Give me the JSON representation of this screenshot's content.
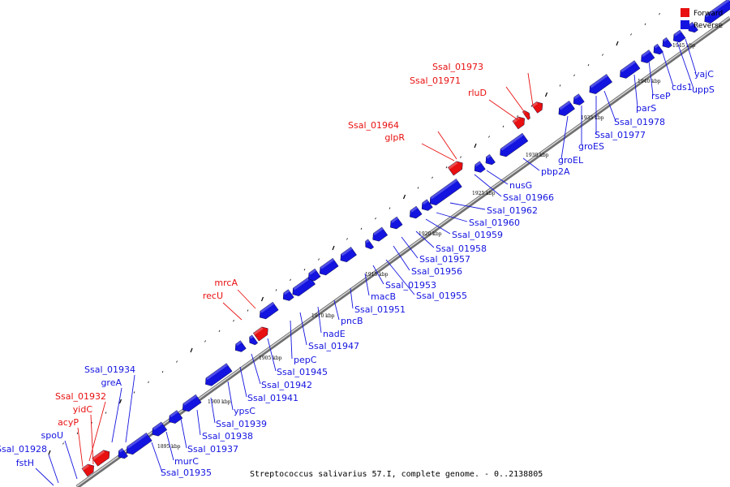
{
  "caption": "Streptococcus salivarius 57.I, complete genome. - 0..2138805",
  "colors": {
    "forward": "#e81010",
    "reverse": "#1414e0",
    "backbone": "#9a9a9a"
  },
  "legend": [
    {
      "label": "Forward",
      "color": "#e81010"
    },
    {
      "label": "Reverse",
      "color": "#1414e0"
    }
  ],
  "scale_labels": [
    "1895 kbp",
    "1900 kbp",
    "1905 kbp",
    "1910 kbp",
    "1915 kbp",
    "1920 kbp",
    "1925 kbp",
    "1930 kbp",
    "1935 kbp",
    "1940 kbp",
    "1945 kbp"
  ],
  "genes": [
    {
      "name": "Ssal_01928",
      "strand": "reverse"
    },
    {
      "name": "fstH",
      "strand": "reverse"
    },
    {
      "name": "spoU",
      "strand": "reverse"
    },
    {
      "name": "acyP",
      "strand": "forward"
    },
    {
      "name": "yidC",
      "strand": "forward"
    },
    {
      "name": "Ssal_01932",
      "strand": "forward"
    },
    {
      "name": "greA",
      "strand": "reverse"
    },
    {
      "name": "Ssal_01934",
      "strand": "reverse"
    },
    {
      "name": "Ssal_01935",
      "strand": "reverse"
    },
    {
      "name": "murC",
      "strand": "reverse"
    },
    {
      "name": "Ssal_01937",
      "strand": "reverse"
    },
    {
      "name": "Ssal_01938",
      "strand": "reverse"
    },
    {
      "name": "Ssal_01939",
      "strand": "reverse"
    },
    {
      "name": "ypsC",
      "strand": "reverse"
    },
    {
      "name": "Ssal_01941",
      "strand": "reverse"
    },
    {
      "name": "Ssal_01942",
      "strand": "reverse"
    },
    {
      "name": "Ssal_01945",
      "strand": "reverse"
    },
    {
      "name": "pepC",
      "strand": "reverse"
    },
    {
      "name": "Ssal_01947",
      "strand": "reverse"
    },
    {
      "name": "nadE",
      "strand": "reverse"
    },
    {
      "name": "pncB",
      "strand": "reverse"
    },
    {
      "name": "recU",
      "strand": "forward"
    },
    {
      "name": "mrcA",
      "strand": "forward"
    },
    {
      "name": "Ssal_01951",
      "strand": "reverse"
    },
    {
      "name": "macB",
      "strand": "reverse"
    },
    {
      "name": "Ssal_01953",
      "strand": "reverse"
    },
    {
      "name": "Ssal_01955",
      "strand": "reverse"
    },
    {
      "name": "Ssal_01956",
      "strand": "reverse"
    },
    {
      "name": "Ssal_01957",
      "strand": "reverse"
    },
    {
      "name": "Ssal_01958",
      "strand": "reverse"
    },
    {
      "name": "Ssal_01959",
      "strand": "reverse"
    },
    {
      "name": "Ssal_01960",
      "strand": "reverse"
    },
    {
      "name": "Ssal_01962",
      "strand": "reverse"
    },
    {
      "name": "Ssal_01966",
      "strand": "reverse"
    },
    {
      "name": "nusG",
      "strand": "reverse"
    },
    {
      "name": "pbp2A",
      "strand": "reverse"
    },
    {
      "name": "glpR",
      "strand": "forward"
    },
    {
      "name": "Ssal_01964",
      "strand": "forward"
    },
    {
      "name": "groEL",
      "strand": "reverse"
    },
    {
      "name": "groES",
      "strand": "reverse"
    },
    {
      "name": "Ssal_01977",
      "strand": "reverse"
    },
    {
      "name": "Ssal_01978",
      "strand": "reverse"
    },
    {
      "name": "rluD",
      "strand": "forward"
    },
    {
      "name": "Ssal_01971",
      "strand": "forward"
    },
    {
      "name": "Ssal_01973",
      "strand": "forward"
    },
    {
      "name": "parS",
      "strand": "reverse"
    },
    {
      "name": "rseP",
      "strand": "reverse"
    },
    {
      "name": "cds1",
      "strand": "reverse"
    },
    {
      "name": "uppS",
      "strand": "reverse"
    },
    {
      "name": "yajC",
      "strand": "reverse"
    }
  ]
}
